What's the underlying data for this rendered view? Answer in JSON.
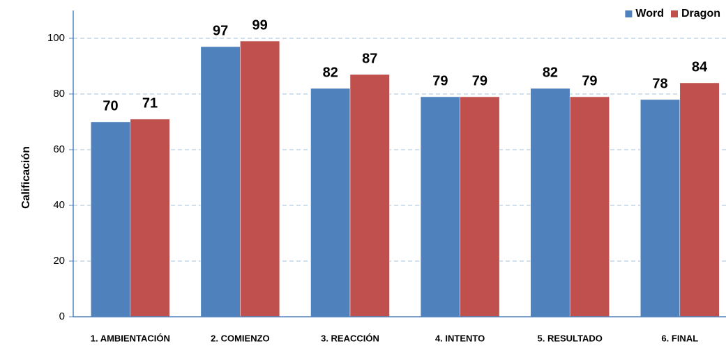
{
  "chart_data": {
    "type": "bar",
    "ylabel": "Calificación",
    "categories": [
      "1. AMBIENTACIÓN",
      "2. COMIENZO",
      "3. REACCIÓN",
      "4. INTENTO",
      "5. RESULTADO",
      "6. FINAL"
    ],
    "series": [
      {
        "name": "Word",
        "color": "#4f81bd",
        "values": [
          70,
          97,
          82,
          79,
          82,
          78
        ]
      },
      {
        "name": "Dragon",
        "color": "#c0504d",
        "values": [
          71,
          99,
          87,
          79,
          79,
          84
        ]
      }
    ],
    "ylim": [
      0,
      110
    ],
    "yticks": [
      0,
      20,
      40,
      60,
      80,
      100
    ],
    "grid": true,
    "legend": "top-right"
  }
}
